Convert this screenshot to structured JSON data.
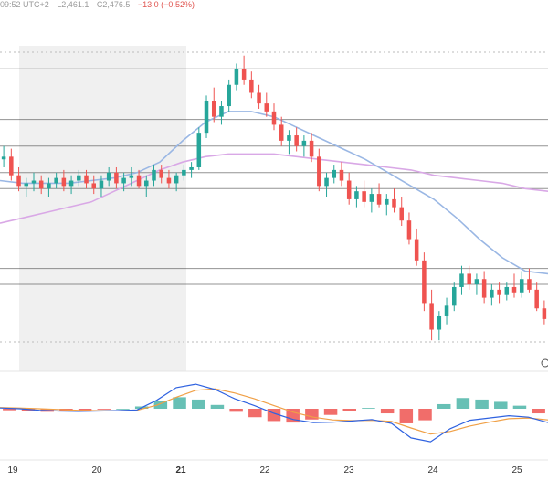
{
  "header": {
    "time": "09:52 UTC+2",
    "low": "L2,461.1",
    "close": "C2,476.5",
    "change": "−13.0 (−0.52%)"
  },
  "time_axis": {
    "ticks": [
      "19",
      "20",
      "21",
      "22",
      "23",
      "24",
      "25"
    ],
    "bold_tick": "21"
  },
  "colors": {
    "up": "#26a69a",
    "down": "#ef5350",
    "fast_ma": "#9ab7e4",
    "slow_ma": "#d9a8e6",
    "macd": "#2f62e0",
    "signal": "#f0a046",
    "session_shade": "#f0f0f0"
  },
  "chart_data": {
    "type": "candlestick",
    "note_panels": [
      "price",
      "macd"
    ],
    "candles": [
      [
        2498,
        2503,
        2495,
        2499
      ],
      [
        2499,
        2502,
        2490,
        2492
      ],
      [
        2492,
        2495,
        2486,
        2488
      ],
      [
        2488,
        2491,
        2484,
        2489
      ],
      [
        2489,
        2493,
        2486,
        2490
      ],
      [
        2490,
        2492,
        2485,
        2487
      ],
      [
        2487,
        2491,
        2484,
        2489
      ],
      [
        2489,
        2493,
        2487,
        2491
      ],
      [
        2491,
        2494,
        2486,
        2488
      ],
      [
        2488,
        2492,
        2485,
        2490
      ],
      [
        2490,
        2494,
        2488,
        2492
      ],
      [
        2492,
        2494,
        2487,
        2489
      ],
      [
        2489,
        2492,
        2485,
        2487
      ],
      [
        2487,
        2492,
        2484,
        2490
      ],
      [
        2490,
        2495,
        2488,
        2493
      ],
      [
        2493,
        2495,
        2487,
        2489
      ],
      [
        2489,
        2493,
        2486,
        2491
      ],
      [
        2491,
        2495,
        2488,
        2492
      ],
      [
        2492,
        2494,
        2487,
        2488
      ],
      [
        2488,
        2492,
        2484,
        2490
      ],
      [
        2490,
        2496,
        2488,
        2494
      ],
      [
        2494,
        2496,
        2489,
        2491
      ],
      [
        2491,
        2494,
        2487,
        2489
      ],
      [
        2489,
        2493,
        2486,
        2492
      ],
      [
        2492,
        2496,
        2490,
        2494
      ],
      [
        2494,
        2497,
        2491,
        2495
      ],
      [
        2495,
        2510,
        2494,
        2508
      ],
      [
        2508,
        2522,
        2506,
        2520
      ],
      [
        2520,
        2525,
        2512,
        2514
      ],
      [
        2514,
        2520,
        2511,
        2518
      ],
      [
        2518,
        2528,
        2516,
        2526
      ],
      [
        2526,
        2534,
        2524,
        2532
      ],
      [
        2532,
        2537,
        2526,
        2528
      ],
      [
        2528,
        2531,
        2521,
        2523
      ],
      [
        2523,
        2526,
        2517,
        2519
      ],
      [
        2519,
        2523,
        2514,
        2516
      ],
      [
        2516,
        2519,
        2509,
        2511
      ],
      [
        2511,
        2514,
        2503,
        2505
      ],
      [
        2505,
        2509,
        2500,
        2507
      ],
      [
        2507,
        2510,
        2501,
        2503
      ],
      [
        2503,
        2507,
        2499,
        2505
      ],
      [
        2505,
        2508,
        2497,
        2499
      ],
      [
        2499,
        2502,
        2486,
        2488
      ],
      [
        2488,
        2493,
        2484,
        2491
      ],
      [
        2491,
        2496,
        2489,
        2494
      ],
      [
        2494,
        2497,
        2488,
        2490
      ],
      [
        2490,
        2493,
        2481,
        2483
      ],
      [
        2483,
        2488,
        2480,
        2486
      ],
      [
        2486,
        2490,
        2480,
        2482
      ],
      [
        2482,
        2487,
        2478,
        2485
      ],
      [
        2485,
        2489,
        2480,
        2481
      ],
      [
        2481,
        2485,
        2477,
        2483
      ],
      [
        2483,
        2487,
        2478,
        2480
      ],
      [
        2480,
        2484,
        2473,
        2475
      ],
      [
        2475,
        2478,
        2466,
        2468
      ],
      [
        2468,
        2472,
        2458,
        2460
      ],
      [
        2460,
        2463,
        2441,
        2444
      ],
      [
        2444,
        2449,
        2430,
        2434
      ],
      [
        2434,
        2441,
        2430,
        2439
      ],
      [
        2439,
        2446,
        2436,
        2443
      ],
      [
        2443,
        2452,
        2441,
        2450
      ],
      [
        2450,
        2458,
        2447,
        2455
      ],
      [
        2455,
        2458,
        2449,
        2451
      ],
      [
        2451,
        2455,
        2447,
        2453
      ],
      [
        2453,
        2456,
        2444,
        2446
      ],
      [
        2446,
        2451,
        2443,
        2449
      ],
      [
        2449,
        2452,
        2444,
        2447
      ],
      [
        2447,
        2452,
        2445,
        2450
      ],
      [
        2450,
        2455,
        2446,
        2448
      ],
      [
        2448,
        2456,
        2446,
        2453
      ],
      [
        2453,
        2457,
        2448,
        2449
      ],
      [
        2449,
        2452,
        2441,
        2442
      ],
      [
        2442,
        2445,
        2436,
        2438
      ]
    ],
    "ma_fast_points": [
      2490,
      2489,
      2489,
      2489,
      2490,
      2491,
      2493,
      2497,
      2505,
      2512,
      2516,
      2516,
      2514,
      2510,
      2506,
      2502,
      2498,
      2493,
      2488,
      2483,
      2476,
      2468,
      2461,
      2456,
      2455
    ],
    "ma_slow_points": [
      2474,
      2476,
      2478,
      2480,
      2482,
      2486,
      2490,
      2494,
      2497,
      2499,
      2500,
      2500,
      2500,
      2499,
      2498,
      2497,
      2496,
      2495,
      2494,
      2492,
      2491,
      2490,
      2489,
      2487,
      2486
    ],
    "horizontal_levels": [
      2532,
      2513,
      2503,
      2493,
      2487,
      2457,
      2451
    ],
    "ylim": [
      2428,
      2540
    ],
    "macd_line": [
      0.2,
      0.0,
      -0.4,
      -0.6,
      -0.7,
      -0.6,
      -0.5,
      -0.3,
      2.2,
      5.5,
      6.4,
      5.0,
      2.6,
      0.8,
      -1.2,
      -2.8,
      -3.6,
      -3.5,
      -3.2,
      -2.8,
      -3.8,
      -7.6,
      -8.6,
      -5.2,
      -3.0,
      -2.4,
      -1.8,
      -2.2,
      -3.6
    ],
    "signal_line": [
      0.3,
      0.2,
      0.0,
      -0.2,
      -0.4,
      -0.5,
      -0.5,
      -0.4,
      0.9,
      3.0,
      4.8,
      5.2,
      4.1,
      2.6,
      0.8,
      -0.9,
      -2.2,
      -2.9,
      -3.1,
      -3.0,
      -3.3,
      -5.0,
      -6.6,
      -5.9,
      -4.5,
      -3.5,
      -2.6,
      -2.4,
      -2.9
    ],
    "macd_hist": [
      -0.2,
      -0.3,
      -0.4,
      -0.3,
      -0.2,
      -0.1,
      0.0,
      0.3,
      1.0,
      1.5,
      1.2,
      0.5,
      -0.4,
      -1.1,
      -1.6,
      -1.8,
      -1.4,
      -0.8,
      -0.3,
      0.1,
      -0.6,
      -1.9,
      -1.5,
      0.6,
      1.4,
      1.2,
      0.9,
      0.4,
      -0.6
    ]
  }
}
